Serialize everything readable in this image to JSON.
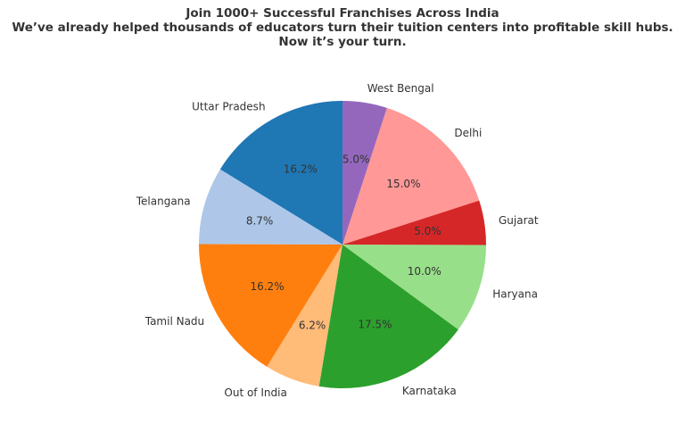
{
  "chart_data": {
    "type": "pie",
    "title": "Join 1000+ Successful Franchises Across India",
    "subtitle_lines": [
      "We’ve already helped thousands of educators turn their tuition centers into profitable skill hubs.",
      "Now it’s your turn."
    ],
    "start_angle_deg": 90,
    "direction": "counterclockwise",
    "legend": "none",
    "slices": [
      {
        "label": "Uttar Pradesh",
        "value": 16.2,
        "pct": "16.2%",
        "color": "#1f77b4"
      },
      {
        "label": "Telangana",
        "value": 8.7,
        "pct": "8.7%",
        "color": "#aec7e8"
      },
      {
        "label": "Tamil Nadu",
        "value": 16.2,
        "pct": "16.2%",
        "color": "#ff7f0e"
      },
      {
        "label": "Out of India",
        "value": 6.2,
        "pct": "6.2%",
        "color": "#ffbb78"
      },
      {
        "label": "Karnataka",
        "value": 17.5,
        "pct": "17.5%",
        "color": "#2ca02c"
      },
      {
        "label": "Haryana",
        "value": 10.0,
        "pct": "10.0%",
        "color": "#98df8a"
      },
      {
        "label": "Gujarat",
        "value": 5.0,
        "pct": "5.0%",
        "color": "#d62728"
      },
      {
        "label": "Delhi",
        "value": 15.0,
        "pct": "15.0%",
        "color": "#ff9896"
      },
      {
        "label": "West Bengal",
        "value": 5.0,
        "pct": "5.0%",
        "color": "#9467bd"
      }
    ]
  }
}
